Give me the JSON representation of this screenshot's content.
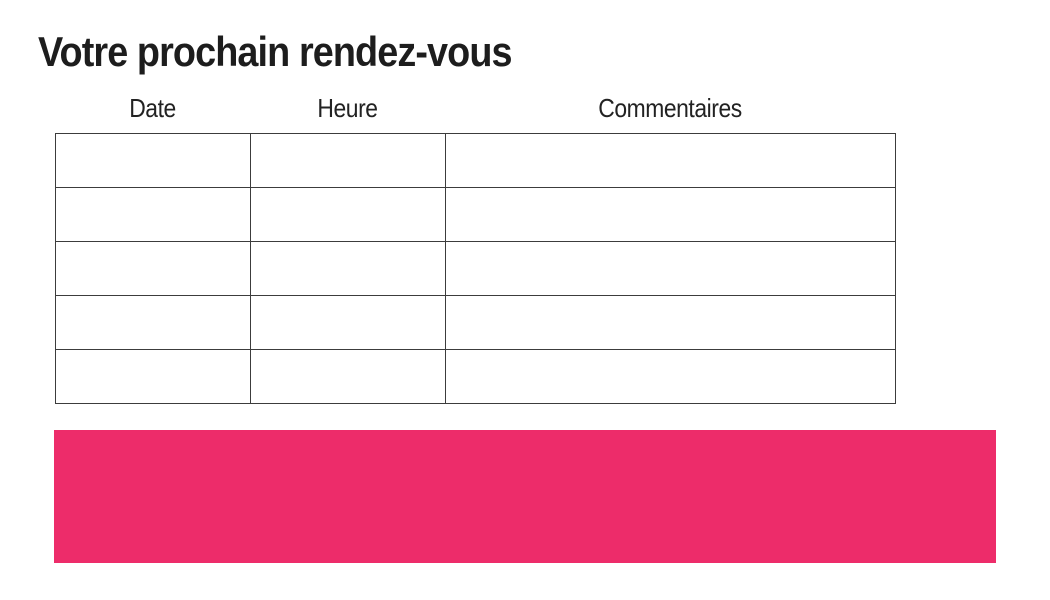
{
  "page": {
    "title": "Votre prochain rendez-vous",
    "background_color": "#ffffff"
  },
  "table": {
    "headers": [
      "Date",
      "Heure",
      "Commentaires"
    ],
    "rows": [
      [
        "",
        "",
        ""
      ],
      [
        "",
        "",
        ""
      ],
      [
        "",
        "",
        ""
      ],
      [
        "",
        "",
        ""
      ],
      [
        "",
        "",
        ""
      ]
    ],
    "border_color": "#3c3c3c"
  },
  "banner": {
    "color": "#ed2c6a",
    "text": ""
  },
  "colors": {
    "title_text": "#1d1d1d",
    "header_text": "#222222",
    "accent_pink": "#ed2c6a"
  }
}
